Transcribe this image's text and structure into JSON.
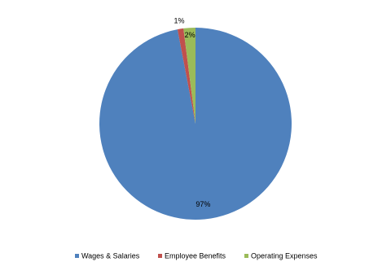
{
  "chart_data": {
    "type": "pie",
    "categories": [
      "Wages & Salaries",
      "Employee Benefits",
      "Operating Expenses"
    ],
    "values": [
      97,
      1,
      2
    ],
    "value_labels": [
      "97%",
      "1%",
      "2%"
    ],
    "colors": [
      "#4f81bd",
      "#c0504d",
      "#9bbb59"
    ],
    "legend": "bottom"
  }
}
